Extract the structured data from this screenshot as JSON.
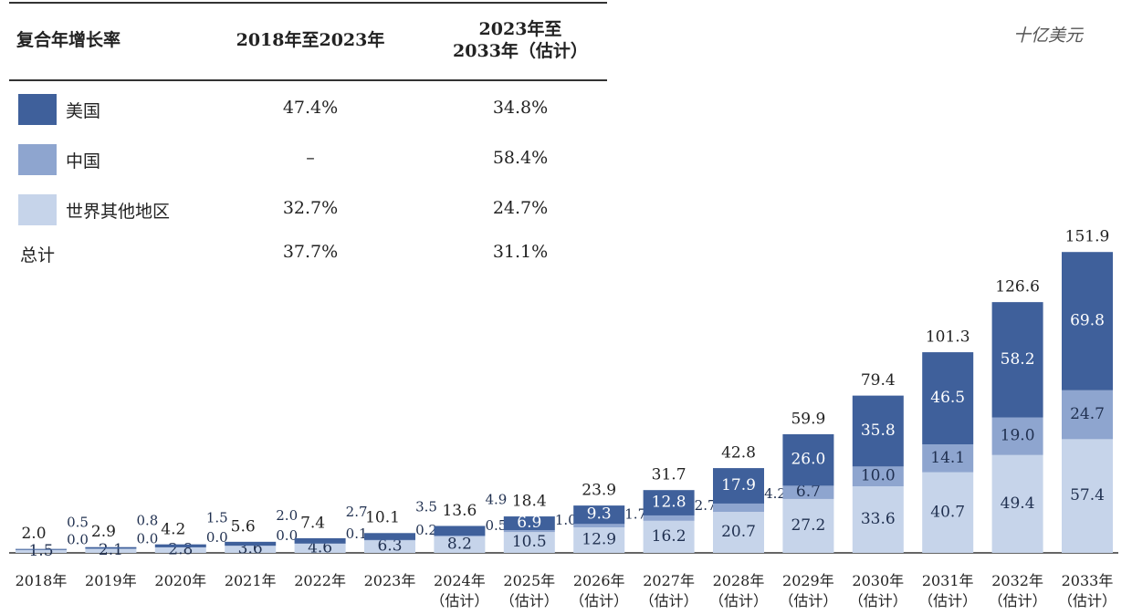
{
  "chart_data": {
    "type": "stacked_bar",
    "unit": "十亿美元",
    "table_headers": [
      "复合年增长率",
      "2018年至2023年",
      "2023年至\n2033年（估计）"
    ],
    "total_name": "总计",
    "total_cagr": [
      "37.7%",
      "31.1%"
    ],
    "categories": [
      "2018年",
      "2019年",
      "2020年",
      "2021年",
      "2022年",
      "2023年",
      "2024年\n（估计）",
      "2025年\n（估计）",
      "2026年\n（估计）",
      "2027年\n（估计）",
      "2028年\n（估计）",
      "2029年\n（估计）",
      "2030年\n（估计）",
      "2031年\n（估计）",
      "2032年\n（估计）",
      "2033年\n（估计）"
    ],
    "series": [
      {
        "name": "世界其他地区",
        "color": "#c6d4ea",
        "label_color": "#1f2f4f",
        "cagr": [
          "32.7%",
          "24.7%"
        ],
        "values": [
          1.5,
          2.1,
          2.8,
          3.6,
          4.6,
          6.3,
          8.2,
          10.5,
          12.9,
          16.2,
          20.7,
          27.2,
          33.6,
          40.7,
          49.4,
          57.4
        ],
        "value_labels": [
          "1.5",
          "2.1",
          "2.8",
          "3.6",
          "4.6",
          "6.3",
          "8.2",
          "10.5",
          "12.9",
          "16.2",
          "20.7",
          "27.2",
          "33.6",
          "40.7",
          "49.4",
          "57.4"
        ]
      },
      {
        "name": "中国",
        "color": "#8ea5cf",
        "label_color": "#1f2f4f",
        "cagr": [
          "–",
          "58.4%"
        ],
        "values": [
          0.0,
          0.0,
          0.0,
          0.0,
          0.1,
          0.2,
          0.5,
          1.0,
          1.7,
          2.7,
          4.2,
          6.7,
          10.0,
          14.1,
          19.0,
          24.7
        ],
        "value_labels": [
          "0.0",
          "0.0",
          "0.0",
          "0.0",
          "0.1",
          "0.2",
          "0.5",
          "1.0",
          "1.7",
          "2.7",
          "4.2",
          "6.7",
          "10.0",
          "14.1",
          "19.0",
          "24.7"
        ]
      },
      {
        "name": "美国",
        "color": "#3f609b",
        "label_color": "#ffffff",
        "cagr": [
          "47.4%",
          "34.8%"
        ],
        "values": [
          0.5,
          0.8,
          1.5,
          2.0,
          2.7,
          3.5,
          4.9,
          6.9,
          9.3,
          12.8,
          17.9,
          26.0,
          35.8,
          46.5,
          58.2,
          69.8
        ],
        "value_labels": [
          "0.5",
          "0.8",
          "1.5",
          "2.0",
          "2.7",
          "3.5",
          "4.9",
          "6.9",
          "9.3",
          "12.8",
          "17.9",
          "26.0",
          "35.8",
          "46.5",
          "58.2",
          "69.8"
        ]
      }
    ],
    "totals": {
      "values": [
        2.0,
        2.9,
        4.2,
        5.6,
        7.4,
        10.1,
        13.6,
        18.4,
        23.9,
        31.7,
        42.8,
        59.9,
        79.4,
        101.3,
        126.6,
        151.9
      ],
      "value_labels": [
        "2.0",
        "2.9",
        "4.2",
        "5.6",
        "7.4",
        "10.1",
        "13.6",
        "18.4",
        "23.9",
        "31.7",
        "42.8",
        "59.9",
        "79.4",
        "101.3",
        "126.6",
        "151.9"
      ]
    }
  }
}
